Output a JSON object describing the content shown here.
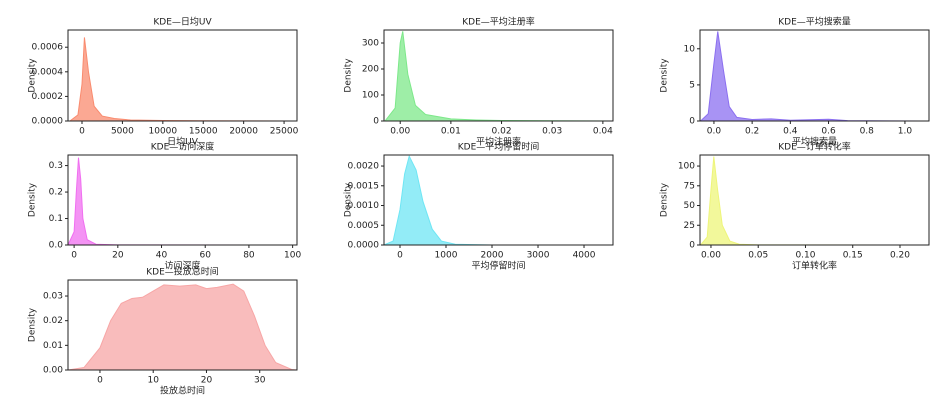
{
  "chart_data": [
    {
      "type": "kde",
      "title": "KDE—日均UV",
      "xlabel": "日均UV",
      "ylabel": "Density",
      "color": "#f98b6f",
      "x": [
        -1500,
        -500,
        0,
        300,
        800,
        1500,
        2500,
        4000,
        6000,
        10000,
        15000,
        20000,
        26000
      ],
      "values": [
        0,
        5e-05,
        0.0003,
        0.00068,
        0.0004,
        0.00012,
        4e-05,
        2e-05,
        8e-06,
        4e-06,
        2e-06,
        1e-06,
        0
      ],
      "xlim": [
        -1733,
        26600
      ],
      "ylim": [
        0,
        0.00074
      ],
      "xticks": [
        0,
        5000,
        10000,
        15000,
        20000,
        25000
      ],
      "yticks": [
        {
          "value": 0,
          "label": "0.0000"
        },
        0.0002,
        0.0004,
        0.0006
      ]
    },
    {
      "type": "kde",
      "title": "KDE—平均注册率",
      "xlabel": "平均注册率",
      "ylabel": "Density",
      "color": "#7de88a",
      "x": [
        -0.003,
        -0.001,
        0,
        0.0005,
        0.0015,
        0.003,
        0.005,
        0.01,
        0.015,
        0.02,
        0.03,
        0.042
      ],
      "values": [
        0,
        50,
        300,
        345,
        180,
        60,
        25,
        8,
        4,
        2,
        1,
        0
      ],
      "xlim": [
        -0.0032,
        0.042
      ],
      "ylim": [
        0,
        350
      ],
      "xticks": [
        {
          "value": 0,
          "label": "0.00"
        },
        {
          "value": 0.01,
          "label": "0.01"
        },
        {
          "value": 0.02,
          "label": "0.02"
        },
        {
          "value": 0.03,
          "label": "0.03"
        },
        {
          "value": 0.04,
          "label": "0.04"
        }
      ],
      "yticks": [
        0,
        100,
        200,
        300
      ]
    },
    {
      "type": "kde",
      "title": "KDE—平均搜索量",
      "xlabel": "平均搜索量",
      "ylabel": "Density",
      "color": "#8b6ff0",
      "x": [
        -0.07,
        -0.03,
        0,
        0.02,
        0.05,
        0.08,
        0.12,
        0.2,
        0.3,
        0.4,
        0.6,
        0.7,
        1.1
      ],
      "values": [
        0,
        1,
        8,
        12.4,
        7,
        2,
        0.5,
        0.2,
        0.3,
        0.1,
        0.25,
        0.05,
        0
      ],
      "xlim": [
        -0.073,
        1.126
      ],
      "ylim": [
        0,
        12.6
      ],
      "xticks": [
        {
          "value": 0,
          "label": "0.0"
        },
        0.2,
        0.4,
        0.6,
        0.8,
        {
          "value": 1,
          "label": "1.0"
        }
      ],
      "yticks": [
        0,
        5,
        10
      ]
    },
    {
      "type": "kde",
      "title": "KDE—访问深度",
      "xlabel": "访问深度",
      "ylabel": "Density",
      "color": "#f06ff0",
      "x": [
        -2.8,
        0,
        1,
        2,
        3,
        4,
        6,
        10,
        20,
        102
      ],
      "values": [
        0,
        0.05,
        0.2,
        0.33,
        0.25,
        0.1,
        0.02,
        0.003,
        0.0005,
        0
      ],
      "xlim": [
        -2.8,
        102
      ],
      "ylim": [
        0,
        0.34
      ],
      "xticks": [
        0,
        20,
        40,
        60,
        80,
        100
      ],
      "yticks": [
        {
          "value": 0,
          "label": "0.0"
        },
        0.1,
        0.2,
        0.3
      ]
    },
    {
      "type": "kde",
      "title": "KDE—平均停留时间",
      "xlabel": "平均停留时间",
      "ylabel": "Density",
      "color": "#6fe6f4",
      "x": [
        -350,
        -150,
        0,
        100,
        200,
        350,
        500,
        700,
        900,
        1200,
        2000,
        4630
      ],
      "values": [
        0,
        0.0001,
        0.0009,
        0.0018,
        0.00225,
        0.0019,
        0.0011,
        0.0004,
        0.0001,
        2e-05,
        0,
        0
      ],
      "xlim": [
        -348,
        4630
      ],
      "ylim": [
        0,
        0.00228
      ],
      "xticks": [
        0,
        1000,
        2000,
        3000,
        4000
      ],
      "yticks": [
        {
          "value": 0,
          "label": "0.0000"
        },
        0.0005,
        {
          "value": 0.001,
          "label": "0.0010"
        },
        0.0015,
        {
          "value": 0.002,
          "label": "0.0020"
        }
      ]
    },
    {
      "type": "kde",
      "title": "KDE—订单转化率",
      "xlabel": "订单转化率",
      "ylabel": "Density",
      "color": "#eef57a",
      "x": [
        -0.011,
        -0.004,
        0,
        0.003,
        0.007,
        0.012,
        0.02,
        0.03,
        0.05,
        0.23
      ],
      "values": [
        0,
        10,
        70,
        112,
        70,
        25,
        5,
        1,
        0.2,
        0
      ],
      "xlim": [
        -0.0116,
        0.2307
      ],
      "ylim": [
        0,
        114
      ],
      "xticks": [
        {
          "value": 0,
          "label": "0.00"
        },
        0.05,
        {
          "value": 0.1,
          "label": "0.10"
        },
        0.15,
        {
          "value": 0.2,
          "label": "0.20"
        }
      ],
      "yticks": [
        0,
        25,
        50,
        75,
        100
      ]
    },
    {
      "type": "kde",
      "title": "KDE—投放总时间",
      "xlabel": "投放总时间",
      "ylabel": "Density",
      "color": "#f7a6a6",
      "x": [
        -6,
        -3,
        0,
        2,
        4,
        6,
        8,
        10,
        12,
        15,
        18,
        20,
        22,
        25,
        27,
        29,
        31,
        33,
        36,
        37
      ],
      "values": [
        0,
        0.001,
        0.009,
        0.02,
        0.027,
        0.029,
        0.0295,
        0.032,
        0.0345,
        0.034,
        0.0345,
        0.033,
        0.0335,
        0.0348,
        0.032,
        0.022,
        0.01,
        0.003,
        0.0002,
        0
      ],
      "xlim": [
        -6,
        37
      ],
      "ylim": [
        0,
        0.0365
      ],
      "xticks": [
        0,
        10,
        20,
        30
      ],
      "yticks": [
        {
          "value": 0,
          "label": "0.00"
        },
        {
          "value": 0.01,
          "label": "0.01"
        },
        {
          "value": 0.02,
          "label": "0.02"
        },
        {
          "value": 0.03,
          "label": "0.03"
        }
      ]
    }
  ]
}
